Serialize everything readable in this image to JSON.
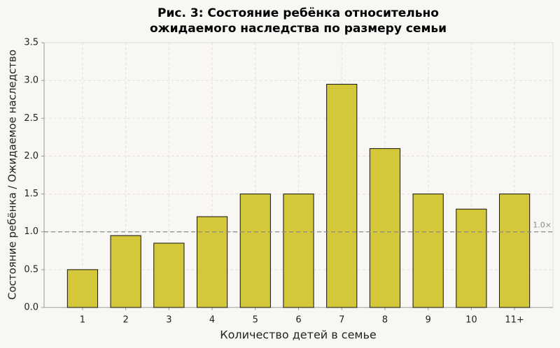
{
  "chart_data": {
    "type": "bar",
    "title": "Рис. 3: Состояние ребёнка относительно\nожидаемого наследства по размеру семьи",
    "x_label": "Количество детей в семье",
    "y_label": "Состояние ребёнка / Ожидаемое наследство",
    "categories": [
      "1",
      "2",
      "3",
      "4",
      "5",
      "6",
      "7",
      "8",
      "9",
      "10",
      "11+"
    ],
    "values": [
      0.5,
      0.95,
      0.85,
      1.2,
      1.5,
      1.5,
      2.95,
      2.1,
      1.5,
      1.3,
      1.5
    ],
    "color": "#d4c83a",
    "ylim": [
      0,
      3.5
    ],
    "yticks": [
      {
        "value": 0,
        "label": "0.0"
      },
      {
        "value": 0.5,
        "label": "0.5"
      },
      {
        "value": 1,
        "label": "1.0"
      },
      {
        "value": 1.5,
        "label": "1.5"
      },
      {
        "value": 2,
        "label": "2.0"
      },
      {
        "value": 2.5,
        "label": "2.5"
      },
      {
        "value": 3,
        "label": "3.0"
      },
      {
        "value": 3.5,
        "label": "3.5"
      }
    ],
    "grid": true,
    "reference_line": {
      "value": 1,
      "label": "1.0×"
    }
  }
}
